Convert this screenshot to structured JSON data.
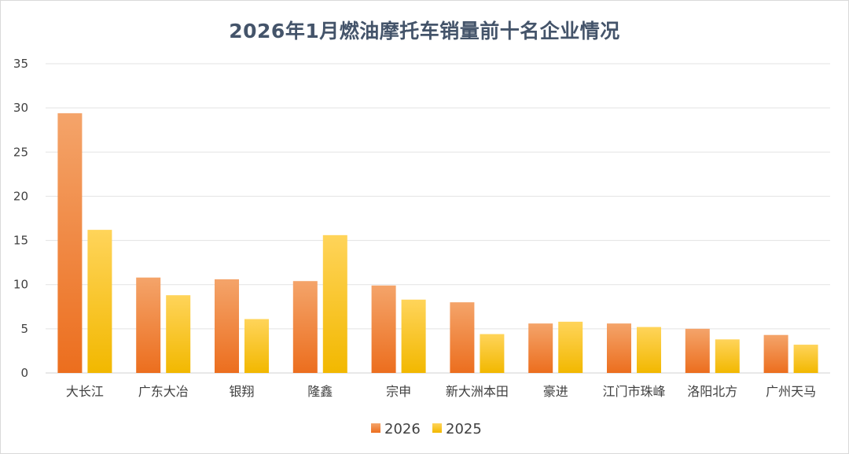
{
  "chart_data": {
    "type": "bar",
    "title": "2026年1月燃油摩托车销量前十名企业情况",
    "xlabel": "",
    "ylabel": "",
    "ylim": [
      0,
      35
    ],
    "yticks": [
      0,
      5,
      10,
      15,
      20,
      25,
      30,
      35
    ],
    "grid": true,
    "legend_position": "bottom",
    "categories": [
      "大长江",
      "广东大冶",
      "银翔",
      "隆鑫",
      "宗申",
      "新大洲本田",
      "豪进",
      "江门市珠峰",
      "洛阳北方",
      "广州天马"
    ],
    "series": [
      {
        "name": "2026",
        "values": [
          29.4,
          10.8,
          10.6,
          10.4,
          9.9,
          8.0,
          5.6,
          5.6,
          5.0,
          4.3
        ],
        "color_top": "#f4a46a",
        "color_bottom": "#ec6e1e"
      },
      {
        "name": "2025",
        "values": [
          16.2,
          8.8,
          6.1,
          15.6,
          8.3,
          4.4,
          5.8,
          5.2,
          3.8,
          3.2
        ],
        "color_top": "#ffd45a",
        "color_bottom": "#f2b800"
      }
    ]
  }
}
